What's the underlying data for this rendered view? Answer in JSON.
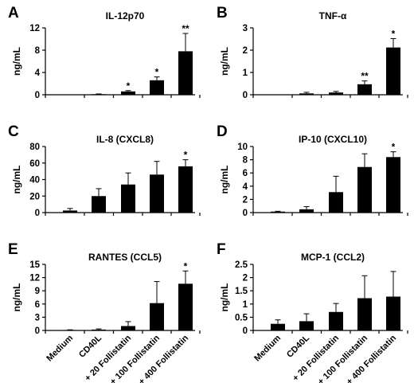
{
  "chart_data": [
    {
      "panel": "A",
      "type": "bar",
      "title": "IL-12p70",
      "ylabel": "ng/mL",
      "ylim": [
        0,
        12
      ],
      "yticks": [
        0,
        4,
        8,
        12
      ],
      "categories": [
        "Medium",
        "CD40L",
        "+ 20 Follistatin",
        "+ 100 Follistatin",
        "+ 400 Follistatin"
      ],
      "values": [
        0.0,
        0.1,
        0.6,
        2.6,
        7.8
      ],
      "errors": [
        0.0,
        0.05,
        0.15,
        0.6,
        3.2
      ],
      "annotations": [
        "",
        "",
        "*",
        "*",
        "**"
      ]
    },
    {
      "panel": "B",
      "type": "bar",
      "title": "TNF-α",
      "ylabel": "ng/mL",
      "ylim": [
        0,
        3
      ],
      "yticks": [
        0,
        1,
        2,
        3
      ],
      "categories": [
        "Medium",
        "CD40L",
        "+ 20 Follistatin",
        "+ 100 Follistatin",
        "+ 400 Follistatin"
      ],
      "values": [
        0.0,
        0.06,
        0.1,
        0.47,
        2.12
      ],
      "errors": [
        0.0,
        0.05,
        0.05,
        0.15,
        0.4
      ],
      "annotations": [
        "",
        "",
        "",
        "**",
        "*"
      ]
    },
    {
      "panel": "C",
      "type": "bar",
      "title": "IL-8 (CXCL8)",
      "ylabel": "ng/mL",
      "ylim": [
        0,
        80
      ],
      "yticks": [
        0,
        20,
        40,
        60,
        80
      ],
      "categories": [
        "Medium",
        "CD40L",
        "+ 20 Follistatin",
        "+ 100 Follistatin",
        "+ 400 Follistatin"
      ],
      "values": [
        2.5,
        20,
        34,
        46,
        56
      ],
      "errors": [
        2.5,
        9,
        14,
        16,
        8
      ],
      "annotations": [
        "",
        "",
        "",
        "",
        "*"
      ]
    },
    {
      "panel": "D",
      "type": "bar",
      "title": "IP-10 (CXCL10)",
      "ylabel": "ng/mL",
      "ylim": [
        0,
        10
      ],
      "yticks": [
        0,
        2,
        4,
        6,
        8,
        10
      ],
      "categories": [
        "Medium",
        "CD40L",
        "+ 20 Follistatin",
        "+ 100 Follistatin",
        "+ 400 Follistatin"
      ],
      "values": [
        0.15,
        0.5,
        3.1,
        6.9,
        8.4
      ],
      "errors": [
        0.05,
        0.4,
        2.4,
        2.0,
        0.8
      ],
      "annotations": [
        "",
        "",
        "",
        "",
        "*"
      ]
    },
    {
      "panel": "E",
      "type": "bar",
      "title": "RANTES (CCL5)",
      "ylabel": "ng/mL",
      "ylim": [
        0,
        15
      ],
      "yticks": [
        0,
        3,
        6,
        9,
        12,
        15
      ],
      "categories": [
        "Medium",
        "CD40L",
        "+ 20 Follistatin",
        "+ 100 Follistatin",
        "+ 400 Follistatin"
      ],
      "values": [
        0.1,
        0.2,
        1.0,
        6.2,
        10.6
      ],
      "errors": [
        0.05,
        0.15,
        1.0,
        4.9,
        2.9
      ],
      "annotations": [
        "",
        "",
        "",
        "",
        "*"
      ]
    },
    {
      "panel": "F",
      "type": "bar",
      "title": "MCP-1 (CCL2)",
      "ylabel": "ng/mL",
      "ylim": [
        0,
        2.5
      ],
      "yticks": [
        0,
        0.5,
        1,
        1.5,
        2,
        2.5
      ],
      "categories": [
        "Medium",
        "CD40L",
        "+ 20 Follistatin",
        "+ 100 Follistatin",
        "+ 400 Follistatin"
      ],
      "values": [
        0.25,
        0.35,
        0.7,
        1.22,
        1.28
      ],
      "errors": [
        0.15,
        0.28,
        0.32,
        0.85,
        0.95
      ],
      "annotations": [
        "",
        "",
        "",
        "",
        ""
      ]
    }
  ],
  "colors": {
    "bar": "#000000",
    "axis": "#000000",
    "background": "#ffffff"
  }
}
